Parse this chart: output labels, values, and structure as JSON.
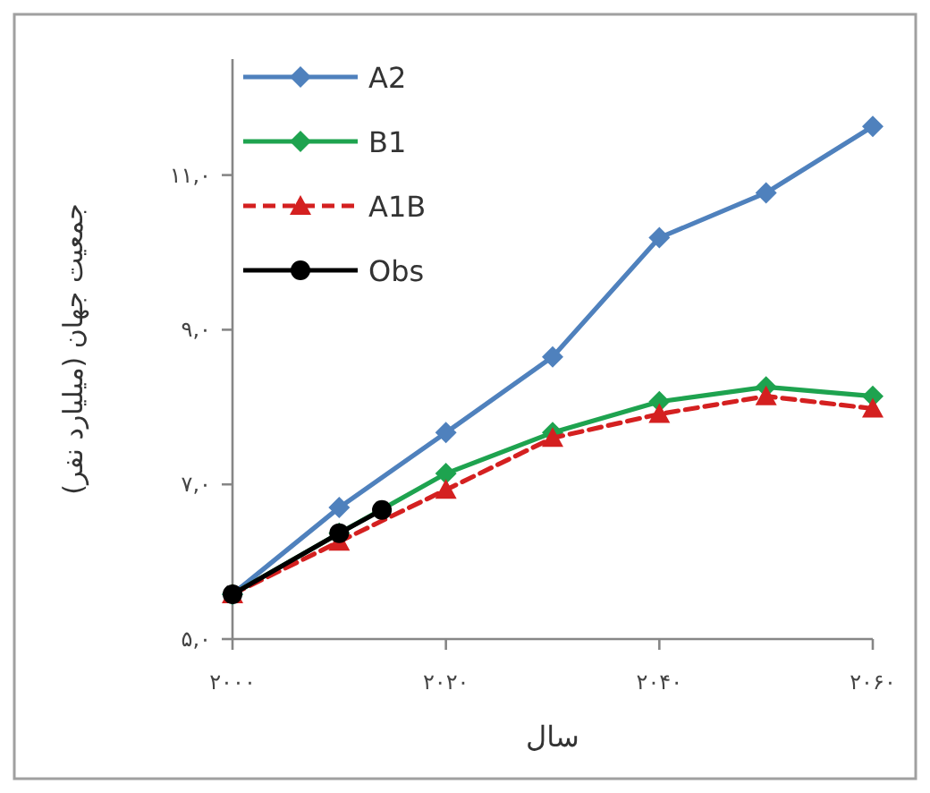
{
  "chart_data": {
    "type": "line",
    "xlabel": "سال",
    "ylabel": "جمعیت جهان (میلیارد نفر)",
    "xlim": [
      2000,
      2060
    ],
    "xticks": [
      {
        "value": 2000,
        "label": "۲۰۰۰"
      },
      {
        "value": 2020,
        "label": "۲۰۲۰"
      },
      {
        "value": 2040,
        "label": "۲۰۴۰"
      },
      {
        "value": 2060,
        "label": "۲۰۶۰"
      }
    ],
    "ylim": [
      5,
      12.5
    ],
    "yticks": [
      {
        "value": 5,
        "label": "۵,۰"
      },
      {
        "value": 7,
        "label": "۷,۰"
      },
      {
        "value": 9,
        "label": "۹,۰"
      },
      {
        "value": 11,
        "label": "۱۱,۰"
      }
    ],
    "grid": false,
    "legend": "top left",
    "series": [
      {
        "name": "A2",
        "color": "#4f81bd",
        "marker": "diamond",
        "line_style": "solid",
        "x": [
          2000,
          2010,
          2020,
          2030,
          2040,
          2050,
          2060
        ],
        "values": [
          5.58,
          6.7,
          7.67,
          8.65,
          10.19,
          10.77,
          11.63
        ]
      },
      {
        "name": "B1",
        "color": "#1ea34f",
        "marker": "diamond",
        "line_style": "solid",
        "x": [
          2000,
          2010,
          2020,
          2030,
          2040,
          2050,
          2060
        ],
        "values": [
          5.58,
          6.37,
          7.14,
          7.67,
          8.07,
          8.26,
          8.14
        ]
      },
      {
        "name": "A1B",
        "color": "#d42020",
        "marker": "triangle",
        "line_style": "dashed",
        "x": [
          2000,
          2010,
          2020,
          2030,
          2040,
          2050,
          2060
        ],
        "values": [
          5.58,
          6.26,
          6.93,
          7.6,
          7.91,
          8.14,
          7.98
        ]
      },
      {
        "name": "Obs",
        "color": "#000000",
        "marker": "circle",
        "line_style": "solid",
        "x": [
          2000,
          2010,
          2014
        ],
        "values": [
          5.58,
          6.37,
          6.67
        ]
      }
    ]
  }
}
